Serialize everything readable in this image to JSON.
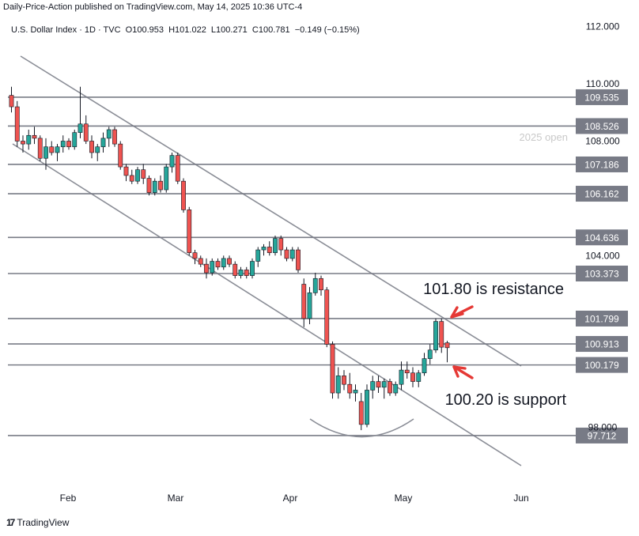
{
  "header": {
    "publisher": "Daily-Price-Action published on TradingView.com, May 14, 2025 10:36 UTC-4",
    "symbol_line": "U.S. Dollar Index · 1D · TVC  O100.953  H101.022  L100.271  C100.781  −0.149 (−0.15%)"
  },
  "footer": {
    "brand": "TradingView"
  },
  "chart_data": {
    "type": "candlestick",
    "title": "U.S. Dollar Index · 1D · TVC",
    "ohlc_readout": {
      "open": 100.953,
      "high": 101.022,
      "low": 100.271,
      "close": 100.781,
      "change": -0.149,
      "change_pct": "−0.15%"
    },
    "y_ticks": [
      "112.000",
      "110.000",
      "108.000",
      "104.000",
      "98.000"
    ],
    "x_ticks": [
      "Feb",
      "Mar",
      "Apr",
      "May",
      "Jun"
    ],
    "levels": [
      {
        "label": "109.535",
        "value": 109.535
      },
      {
        "label": "108.526",
        "value": 108.526
      },
      {
        "label": "107.186",
        "value": 107.186
      },
      {
        "label": "106.162",
        "value": 106.162
      },
      {
        "label": "104.636",
        "value": 104.636
      },
      {
        "label": "103.373",
        "value": 103.373
      },
      {
        "label": "101.799",
        "value": 101.799
      },
      {
        "label": "100.913",
        "value": 100.913
      },
      {
        "label": "100.179",
        "value": 100.179
      },
      {
        "label": "97.712",
        "value": 97.712
      }
    ],
    "annotations": {
      "year_open": "2025 open",
      "resistance": "101.80 is resistance",
      "support": "100.20 is support"
    },
    "colors": {
      "up": "#26a69a",
      "down": "#ef5350",
      "level_line": "#787b86",
      "tag_bg": "#787b86",
      "channel": "#8a8d96",
      "arrow": "#e53935"
    },
    "candles": [
      {
        "t": 0,
        "o": 109.6,
        "h": 109.9,
        "l": 109.0,
        "c": 109.2
      },
      {
        "t": 1,
        "o": 109.2,
        "h": 109.4,
        "l": 107.8,
        "c": 108.0
      },
      {
        "t": 2,
        "o": 108.0,
        "h": 108.2,
        "l": 107.6,
        "c": 107.9
      },
      {
        "t": 3,
        "o": 107.9,
        "h": 108.4,
        "l": 107.7,
        "c": 108.2
      },
      {
        "t": 4,
        "o": 108.2,
        "h": 108.5,
        "l": 107.9,
        "c": 108.1
      },
      {
        "t": 5,
        "o": 108.1,
        "h": 108.2,
        "l": 107.3,
        "c": 107.4
      },
      {
        "t": 6,
        "o": 107.4,
        "h": 108.1,
        "l": 107.0,
        "c": 107.8
      },
      {
        "t": 7,
        "o": 107.8,
        "h": 108.0,
        "l": 107.5,
        "c": 107.6
      },
      {
        "t": 8,
        "o": 107.6,
        "h": 107.9,
        "l": 107.3,
        "c": 107.8
      },
      {
        "t": 9,
        "o": 107.8,
        "h": 108.2,
        "l": 107.6,
        "c": 108.0
      },
      {
        "t": 10,
        "o": 108.0,
        "h": 108.1,
        "l": 107.7,
        "c": 107.8
      },
      {
        "t": 11,
        "o": 107.8,
        "h": 108.4,
        "l": 107.7,
        "c": 108.3
      },
      {
        "t": 12,
        "o": 108.3,
        "h": 109.9,
        "l": 108.1,
        "c": 108.6
      },
      {
        "t": 13,
        "o": 108.6,
        "h": 108.9,
        "l": 107.9,
        "c": 108.0
      },
      {
        "t": 14,
        "o": 108.0,
        "h": 108.2,
        "l": 107.4,
        "c": 107.6
      },
      {
        "t": 15,
        "o": 107.6,
        "h": 107.9,
        "l": 107.3,
        "c": 107.8
      },
      {
        "t": 16,
        "o": 107.8,
        "h": 108.3,
        "l": 107.6,
        "c": 108.1
      },
      {
        "t": 17,
        "o": 108.1,
        "h": 108.5,
        "l": 107.8,
        "c": 108.4
      },
      {
        "t": 18,
        "o": 108.4,
        "h": 108.5,
        "l": 107.8,
        "c": 107.9
      },
      {
        "t": 19,
        "o": 107.9,
        "h": 108.0,
        "l": 107.0,
        "c": 107.1
      },
      {
        "t": 20,
        "o": 107.1,
        "h": 107.2,
        "l": 106.6,
        "c": 106.8
      },
      {
        "t": 21,
        "o": 106.8,
        "h": 107.0,
        "l": 106.5,
        "c": 106.6
      },
      {
        "t": 22,
        "o": 106.6,
        "h": 107.1,
        "l": 106.5,
        "c": 107.0
      },
      {
        "t": 23,
        "o": 107.0,
        "h": 107.2,
        "l": 106.5,
        "c": 106.7
      },
      {
        "t": 24,
        "o": 106.7,
        "h": 106.8,
        "l": 106.1,
        "c": 106.2
      },
      {
        "t": 25,
        "o": 106.2,
        "h": 106.7,
        "l": 106.1,
        "c": 106.6
      },
      {
        "t": 26,
        "o": 106.6,
        "h": 106.8,
        "l": 106.2,
        "c": 106.3
      },
      {
        "t": 27,
        "o": 106.3,
        "h": 107.2,
        "l": 106.2,
        "c": 107.1
      },
      {
        "t": 28,
        "o": 107.1,
        "h": 107.6,
        "l": 106.9,
        "c": 107.5
      },
      {
        "t": 29,
        "o": 107.5,
        "h": 107.6,
        "l": 106.5,
        "c": 106.6
      },
      {
        "t": 30,
        "o": 106.6,
        "h": 106.7,
        "l": 105.5,
        "c": 105.6
      },
      {
        "t": 31,
        "o": 105.6,
        "h": 105.7,
        "l": 104.0,
        "c": 104.1
      },
      {
        "t": 32,
        "o": 104.1,
        "h": 104.2,
        "l": 103.7,
        "c": 103.9
      },
      {
        "t": 33,
        "o": 103.9,
        "h": 104.0,
        "l": 103.6,
        "c": 103.7
      },
      {
        "t": 34,
        "o": 103.7,
        "h": 103.9,
        "l": 103.2,
        "c": 103.4
      },
      {
        "t": 35,
        "o": 103.4,
        "h": 103.9,
        "l": 103.3,
        "c": 103.8
      },
      {
        "t": 36,
        "o": 103.8,
        "h": 103.9,
        "l": 103.5,
        "c": 103.6
      },
      {
        "t": 37,
        "o": 103.6,
        "h": 104.0,
        "l": 103.5,
        "c": 103.9
      },
      {
        "t": 38,
        "o": 103.9,
        "h": 104.0,
        "l": 103.6,
        "c": 103.7
      },
      {
        "t": 39,
        "o": 103.7,
        "h": 103.8,
        "l": 103.2,
        "c": 103.3
      },
      {
        "t": 40,
        "o": 103.3,
        "h": 103.6,
        "l": 103.2,
        "c": 103.5
      },
      {
        "t": 41,
        "o": 103.5,
        "h": 103.6,
        "l": 103.2,
        "c": 103.3
      },
      {
        "t": 42,
        "o": 103.3,
        "h": 103.9,
        "l": 103.2,
        "c": 103.8
      },
      {
        "t": 43,
        "o": 103.8,
        "h": 104.3,
        "l": 103.6,
        "c": 104.2
      },
      {
        "t": 44,
        "o": 104.2,
        "h": 104.4,
        "l": 104.0,
        "c": 104.3
      },
      {
        "t": 45,
        "o": 104.3,
        "h": 104.5,
        "l": 104.0,
        "c": 104.1
      },
      {
        "t": 46,
        "o": 104.1,
        "h": 104.7,
        "l": 104.0,
        "c": 104.6
      },
      {
        "t": 47,
        "o": 104.6,
        "h": 104.7,
        "l": 104.0,
        "c": 104.2
      },
      {
        "t": 48,
        "o": 104.2,
        "h": 104.3,
        "l": 103.8,
        "c": 103.9
      },
      {
        "t": 49,
        "o": 103.9,
        "h": 104.3,
        "l": 103.8,
        "c": 104.2
      },
      {
        "t": 50,
        "o": 104.2,
        "h": 104.3,
        "l": 103.4,
        "c": 103.5
      },
      {
        "t": 51,
        "o": 103.0,
        "h": 103.2,
        "l": 101.5,
        "c": 101.8
      },
      {
        "t": 52,
        "o": 101.8,
        "h": 102.9,
        "l": 101.6,
        "c": 102.7
      },
      {
        "t": 53,
        "o": 102.7,
        "h": 103.4,
        "l": 102.6,
        "c": 103.2
      },
      {
        "t": 54,
        "o": 103.2,
        "h": 103.3,
        "l": 102.6,
        "c": 102.8
      },
      {
        "t": 55,
        "o": 102.8,
        "h": 102.9,
        "l": 100.8,
        "c": 100.9
      },
      {
        "t": 56,
        "o": 100.9,
        "h": 101.0,
        "l": 99.0,
        "c": 99.2
      },
      {
        "t": 57,
        "o": 99.2,
        "h": 100.1,
        "l": 99.0,
        "c": 99.8
      },
      {
        "t": 58,
        "o": 99.8,
        "h": 100.0,
        "l": 99.3,
        "c": 99.5
      },
      {
        "t": 59,
        "o": 99.5,
        "h": 99.9,
        "l": 99.0,
        "c": 99.2
      },
      {
        "t": 60,
        "o": 99.2,
        "h": 99.5,
        "l": 98.9,
        "c": 99.3
      },
      {
        "t": 61,
        "o": 98.9,
        "h": 99.2,
        "l": 97.9,
        "c": 98.1
      },
      {
        "t": 62,
        "o": 98.1,
        "h": 99.5,
        "l": 98.0,
        "c": 99.3
      },
      {
        "t": 63,
        "o": 99.3,
        "h": 99.8,
        "l": 99.0,
        "c": 99.6
      },
      {
        "t": 64,
        "o": 99.6,
        "h": 99.8,
        "l": 99.2,
        "c": 99.4
      },
      {
        "t": 65,
        "o": 99.4,
        "h": 99.7,
        "l": 99.0,
        "c": 99.6
      },
      {
        "t": 66,
        "o": 99.6,
        "h": 99.7,
        "l": 99.1,
        "c": 99.2
      },
      {
        "t": 67,
        "o": 99.2,
        "h": 99.6,
        "l": 99.1,
        "c": 99.5
      },
      {
        "t": 68,
        "o": 99.5,
        "h": 100.3,
        "l": 99.3,
        "c": 100.0
      },
      {
        "t": 69,
        "o": 100.0,
        "h": 100.3,
        "l": 99.7,
        "c": 99.9
      },
      {
        "t": 70,
        "o": 99.9,
        "h": 100.1,
        "l": 99.4,
        "c": 99.6
      },
      {
        "t": 71,
        "o": 99.6,
        "h": 100.0,
        "l": 99.4,
        "c": 99.9
      },
      {
        "t": 72,
        "o": 99.9,
        "h": 100.6,
        "l": 99.8,
        "c": 100.4
      },
      {
        "t": 73,
        "o": 100.4,
        "h": 100.9,
        "l": 100.2,
        "c": 100.7
      },
      {
        "t": 74,
        "o": 100.7,
        "h": 101.8,
        "l": 100.6,
        "c": 101.7
      },
      {
        "t": 75,
        "o": 101.7,
        "h": 101.8,
        "l": 100.6,
        "c": 100.8
      },
      {
        "t": 76,
        "o": 100.953,
        "h": 101.022,
        "l": 100.271,
        "c": 100.781
      }
    ]
  }
}
